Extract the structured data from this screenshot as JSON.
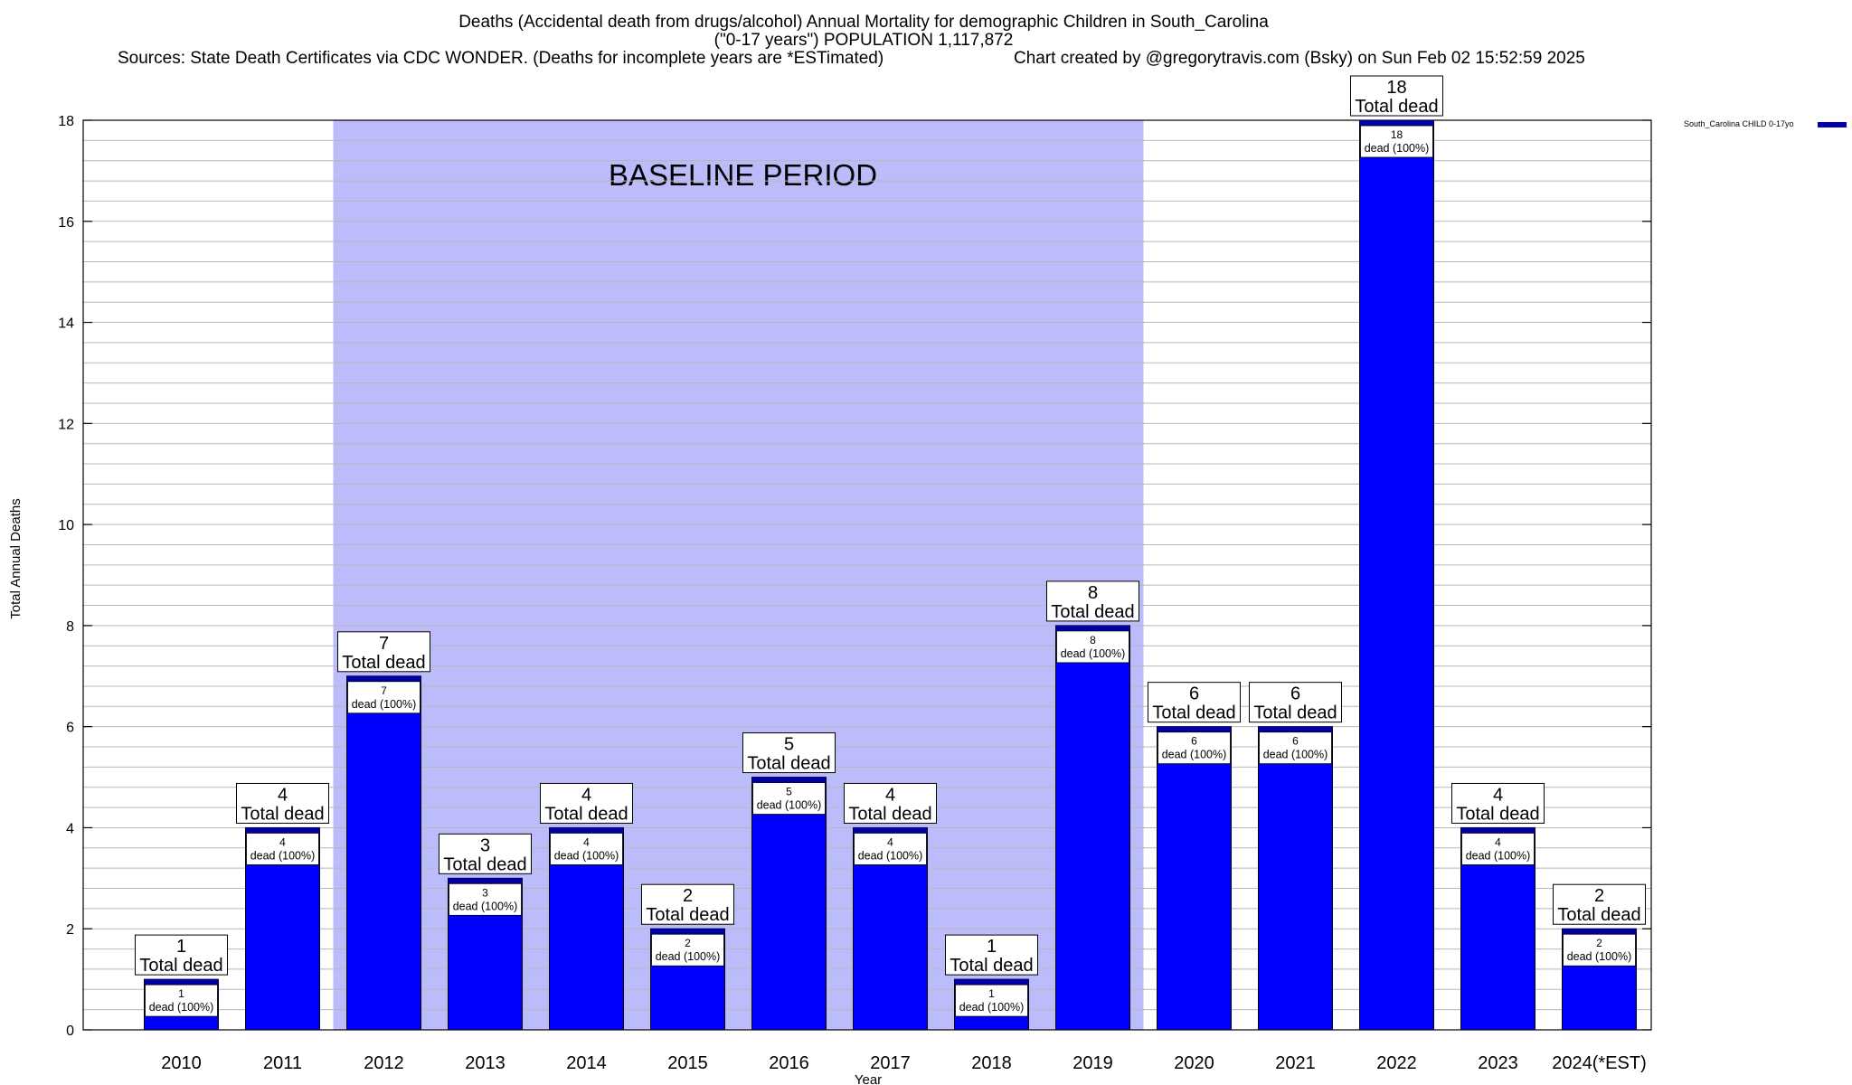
{
  "title_lines": [
    "Deaths (Accidental death from drugs/alcohol) Annual Mortality for demographic Children in South_Carolina",
    "(\"0-17 years\") POPULATION 1,117,872"
  ],
  "sources_text": "Sources: State Death Certificates via CDC WONDER. (Deaths for incomplete years are *ESTimated)",
  "credit_text": "Chart created by @gregorytravis.com (Bsky) on Sun Feb 02 15:52:59 2025",
  "chart_data": {
    "type": "bar",
    "categories": [
      "2010",
      "2011",
      "2012",
      "2013",
      "2014",
      "2015",
      "2016",
      "2017",
      "2018",
      "2019",
      "2020",
      "2021",
      "2022",
      "2023",
      "2024(*EST)"
    ],
    "series": [
      {
        "name": "South_Carolina CHILD 0-17yo",
        "values": [
          1,
          4,
          7,
          3,
          4,
          2,
          5,
          4,
          1,
          8,
          6,
          6,
          18,
          4,
          2
        ]
      }
    ],
    "top_label_text": "Total dead",
    "inner_label_text": "dead (100%)",
    "xlabel": "Year",
    "ylabel": "Total Annual Deaths",
    "ylim": [
      0,
      18
    ],
    "y_ticks": [
      0,
      2,
      4,
      6,
      8,
      10,
      12,
      14,
      16,
      18
    ],
    "grid": true,
    "legend_position": "top-right",
    "baseline_period": {
      "label": "BASELINE PERIOD",
      "from": "2012",
      "to": "2019"
    },
    "colors": {
      "bar": "#0000ff",
      "bar_cap": "#0000aa",
      "baseline": "#bcbcfa",
      "grid": "#b8b8b8"
    }
  }
}
